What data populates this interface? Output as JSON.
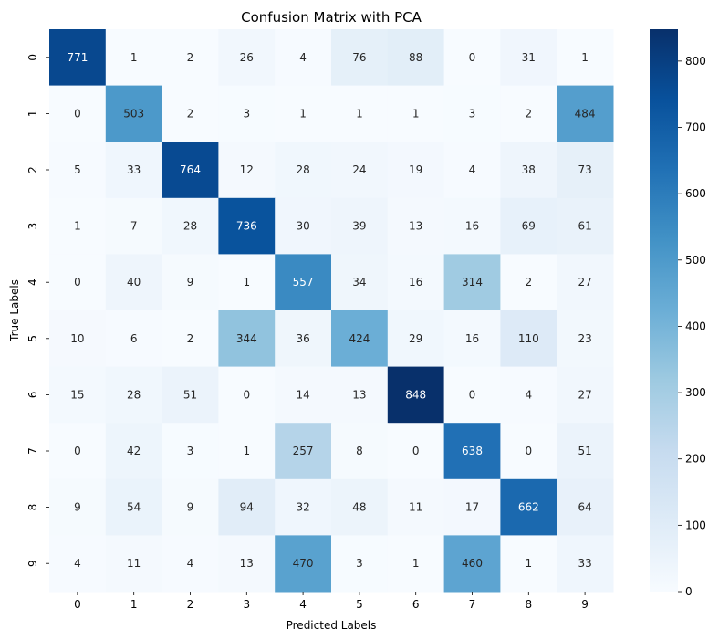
{
  "chart_data": {
    "type": "heatmap",
    "title": "Confusion Matrix with PCA",
    "xlabel": "Predicted Labels",
    "ylabel": "True Labels",
    "x_categories": [
      "0",
      "1",
      "2",
      "3",
      "4",
      "5",
      "6",
      "7",
      "8",
      "9"
    ],
    "y_categories": [
      "0",
      "1",
      "2",
      "3",
      "4",
      "5",
      "6",
      "7",
      "8",
      "9"
    ],
    "values": [
      [
        771,
        1,
        2,
        26,
        4,
        76,
        88,
        0,
        31,
        1
      ],
      [
        0,
        503,
        2,
        3,
        1,
        1,
        1,
        3,
        2,
        484
      ],
      [
        5,
        33,
        764,
        12,
        28,
        24,
        19,
        4,
        38,
        73
      ],
      [
        1,
        7,
        28,
        736,
        30,
        39,
        13,
        16,
        69,
        61
      ],
      [
        0,
        40,
        9,
        1,
        557,
        34,
        16,
        314,
        2,
        27
      ],
      [
        10,
        6,
        2,
        344,
        36,
        424,
        29,
        16,
        110,
        23
      ],
      [
        15,
        28,
        51,
        0,
        14,
        13,
        848,
        0,
        4,
        27
      ],
      [
        0,
        42,
        3,
        1,
        257,
        8,
        0,
        638,
        0,
        51
      ],
      [
        9,
        54,
        9,
        94,
        32,
        48,
        11,
        17,
        662,
        64
      ],
      [
        4,
        11,
        4,
        13,
        470,
        3,
        1,
        460,
        1,
        33
      ]
    ],
    "colormap": "Blues",
    "vmin": 0,
    "vmax": 848,
    "colorbar_ticks": [
      0,
      100,
      200,
      300,
      400,
      500,
      600,
      700,
      800
    ]
  }
}
